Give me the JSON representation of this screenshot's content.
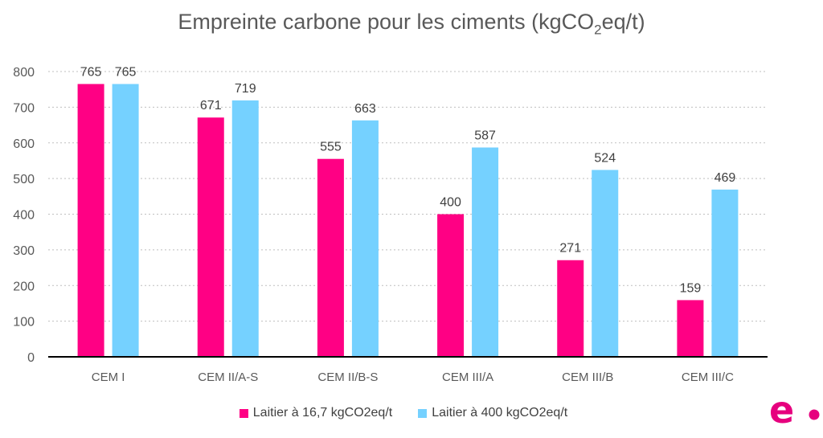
{
  "chart_data": {
    "type": "bar",
    "title": {
      "main": "Empreinte carbone pour les ciments (kgCO",
      "sub": "2",
      "tail": "eq/t)"
    },
    "categories": [
      "CEM I",
      "CEM II/A-S",
      "CEM II/B-S",
      "CEM III/A",
      "CEM III/B",
      "CEM III/C"
    ],
    "series": [
      {
        "name": "Laitier à 16,7 kgCO2eq/t",
        "color": "#FF0084",
        "values": [
          765,
          671,
          555,
          400,
          271,
          159
        ]
      },
      {
        "name": "Laitier à 400 kgCO2eq/t",
        "color": "#75D1FF",
        "values": [
          765,
          719,
          663,
          587,
          524,
          469
        ]
      }
    ],
    "ylim": [
      0,
      800
    ],
    "yticks": [
      0,
      100,
      200,
      300,
      400,
      500,
      600,
      700,
      800
    ],
    "grid": true,
    "legend": "bottom",
    "xlabel": "",
    "ylabel": ""
  },
  "logo": {
    "text": "e.",
    "color": "#E6007E"
  }
}
